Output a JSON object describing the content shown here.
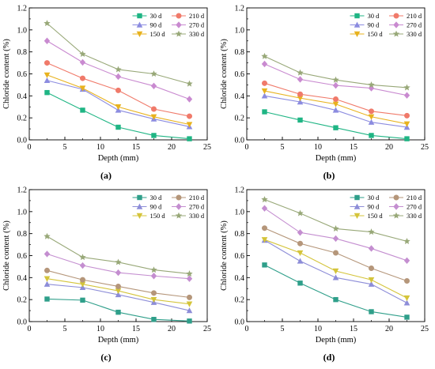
{
  "chart_data": [
    {
      "panel": "(a)",
      "type": "line",
      "xlabel": "Depth (mm)",
      "ylabel": "Chloride content (%)",
      "xlim": [
        0,
        25
      ],
      "ylim": [
        0,
        1.2
      ],
      "xticks": [
        "0",
        "5",
        "10",
        "15",
        "20",
        "25"
      ],
      "yticks": [
        "0.0",
        "0.2",
        "0.4",
        "0.6",
        "0.8",
        "1.0",
        "1.2"
      ],
      "legend": "top-right",
      "x": [
        2.5,
        7.5,
        12.5,
        17.5,
        22.5
      ],
      "series": [
        {
          "name": "30 d",
          "values": [
            0.43,
            0.27,
            0.115,
            0.04,
            0.01
          ]
        },
        {
          "name": "90 d",
          "values": [
            0.54,
            0.46,
            0.27,
            0.19,
            0.12
          ]
        },
        {
          "name": "150 d",
          "values": [
            0.59,
            0.47,
            0.3,
            0.21,
            0.14
          ]
        },
        {
          "name": "210 d",
          "values": [
            0.7,
            0.56,
            0.45,
            0.28,
            0.215
          ]
        },
        {
          "name": "270 d",
          "values": [
            0.9,
            0.705,
            0.575,
            0.49,
            0.37
          ]
        },
        {
          "name": "330 d",
          "values": [
            1.06,
            0.78,
            0.64,
            0.6,
            0.51
          ]
        }
      ]
    },
    {
      "panel": "(b)",
      "type": "line",
      "xlabel": "Depth (mm)",
      "ylabel": "Chloride content (%)",
      "xlim": [
        0,
        25
      ],
      "ylim": [
        0,
        1.2
      ],
      "xticks": [
        "0",
        "5",
        "10",
        "15",
        "20",
        "25"
      ],
      "yticks": [
        "0.0",
        "0.2",
        "0.4",
        "0.6",
        "0.8",
        "1.0",
        "1.2"
      ],
      "legend": "top-right",
      "x": [
        2.5,
        7.5,
        12.5,
        17.5,
        22.5
      ],
      "series": [
        {
          "name": "30 d",
          "values": [
            0.255,
            0.18,
            0.11,
            0.04,
            0.01
          ]
        },
        {
          "name": "90 d",
          "values": [
            0.4,
            0.345,
            0.27,
            0.16,
            0.115
          ]
        },
        {
          "name": "150 d",
          "values": [
            0.445,
            0.38,
            0.325,
            0.21,
            0.145
          ]
        },
        {
          "name": "210 d",
          "values": [
            0.515,
            0.415,
            0.37,
            0.26,
            0.22
          ]
        },
        {
          "name": "270 d",
          "values": [
            0.69,
            0.55,
            0.495,
            0.47,
            0.405
          ]
        },
        {
          "name": "330 d",
          "values": [
            0.76,
            0.61,
            0.545,
            0.5,
            0.475
          ]
        }
      ]
    },
    {
      "panel": "(c)",
      "type": "line",
      "xlabel": "Depth (mm)",
      "ylabel": "Chloride content (%)",
      "xlim": [
        0,
        25
      ],
      "ylim": [
        0,
        1.2
      ],
      "xticks": [
        "0",
        "5",
        "10",
        "15",
        "20",
        "25"
      ],
      "yticks": [
        "0.0",
        "0.2",
        "0.4",
        "0.6",
        "0.8",
        "1.0",
        "1.2"
      ],
      "legend": "top-right",
      "x": [
        2.5,
        7.5,
        12.5,
        17.5,
        22.5
      ],
      "series": [
        {
          "name": "30 d",
          "values": [
            0.205,
            0.195,
            0.085,
            0.02,
            0.005
          ]
        },
        {
          "name": "90 d",
          "values": [
            0.34,
            0.31,
            0.245,
            0.175,
            0.1
          ]
        },
        {
          "name": "150 d",
          "values": [
            0.39,
            0.34,
            0.28,
            0.2,
            0.16
          ]
        },
        {
          "name": "210 d",
          "values": [
            0.465,
            0.38,
            0.32,
            0.26,
            0.22
          ]
        },
        {
          "name": "270 d",
          "values": [
            0.615,
            0.51,
            0.445,
            0.415,
            0.39
          ]
        },
        {
          "name": "330 d",
          "values": [
            0.775,
            0.585,
            0.54,
            0.47,
            0.435
          ]
        }
      ]
    },
    {
      "panel": "(d)",
      "type": "line",
      "xlabel": "Depth (mm)",
      "ylabel": "Chloride content (%)",
      "xlim": [
        0,
        25
      ],
      "ylim": [
        0,
        1.2
      ],
      "xticks": [
        "0",
        "5",
        "10",
        "15",
        "20",
        "25"
      ],
      "yticks": [
        "0.0",
        "0.2",
        "0.4",
        "0.6",
        "0.8",
        "1.0",
        "1.2"
      ],
      "legend": "top-right",
      "x": [
        2.5,
        7.5,
        12.5,
        17.5,
        22.5
      ],
      "series": [
        {
          "name": "30 d",
          "values": [
            0.515,
            0.35,
            0.2,
            0.09,
            0.04
          ]
        },
        {
          "name": "90 d",
          "values": [
            0.74,
            0.55,
            0.4,
            0.34,
            0.17
          ]
        },
        {
          "name": "150 d",
          "values": [
            0.745,
            0.625,
            0.46,
            0.38,
            0.215
          ]
        },
        {
          "name": "210 d",
          "values": [
            0.85,
            0.71,
            0.625,
            0.485,
            0.37
          ]
        },
        {
          "name": "270 d",
          "values": [
            1.03,
            0.81,
            0.755,
            0.665,
            0.555
          ]
        },
        {
          "name": "330 d",
          "values": [
            1.11,
            0.985,
            0.845,
            0.815,
            0.73
          ]
        }
      ]
    }
  ],
  "series_styles": [
    {
      "color": "#1fb584",
      "marker": "square"
    },
    {
      "color": "#8c8ce0",
      "marker": "triangle-up"
    },
    {
      "color": "#e8b21e",
      "marker": "triangle-down"
    },
    {
      "color": "#f07a6a",
      "marker": "circle"
    },
    {
      "color": "#c98ad0",
      "marker": "diamond"
    },
    {
      "color": "#98a878",
      "marker": "star"
    }
  ],
  "panel_series_styles": {
    "2": [
      {
        "color": "#2f9f8a",
        "marker": "square"
      },
      {
        "color": "#8d8dd8",
        "marker": "triangle-up"
      },
      {
        "color": "#d4c43a",
        "marker": "triangle-down"
      },
      {
        "color": "#b5967a",
        "marker": "circle"
      },
      {
        "color": "#c48ed0",
        "marker": "diamond"
      },
      {
        "color": "#98a878",
        "marker": "star"
      }
    ],
    "3": [
      {
        "color": "#2f9f8a",
        "marker": "square"
      },
      {
        "color": "#8d8dd8",
        "marker": "triangle-up"
      },
      {
        "color": "#d4c43a",
        "marker": "triangle-down"
      },
      {
        "color": "#b5967a",
        "marker": "circle"
      },
      {
        "color": "#c48ed0",
        "marker": "diamond"
      },
      {
        "color": "#98a878",
        "marker": "star"
      }
    ]
  }
}
